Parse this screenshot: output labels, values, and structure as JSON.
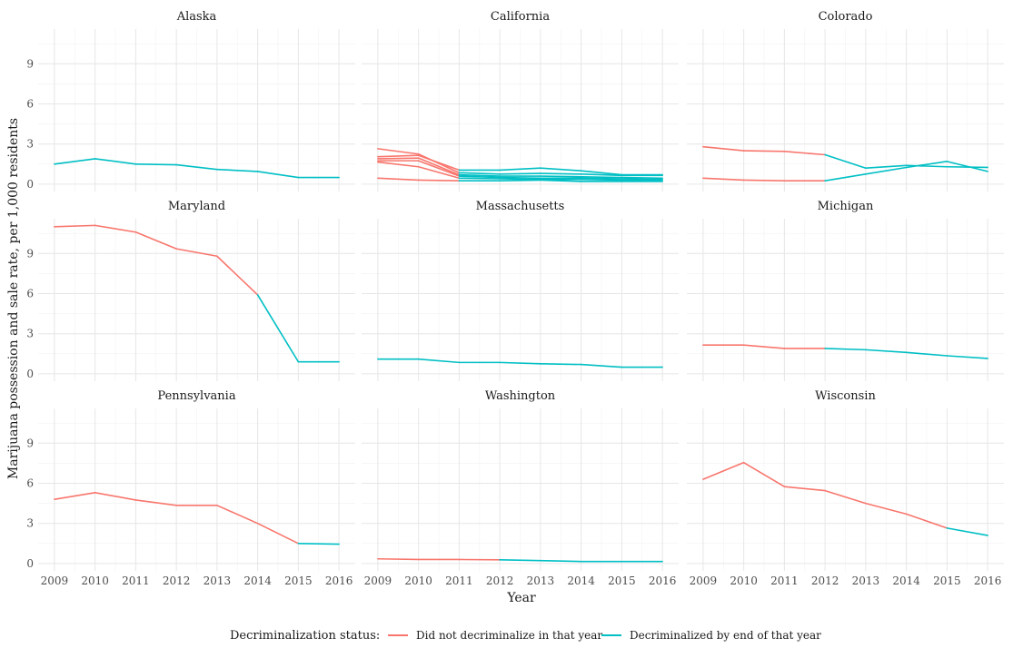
{
  "chart_data": {
    "type": "line",
    "facet": "small-multiples",
    "grid": true,
    "xlabel": "Year",
    "ylabel": "Marijuana possession and sale rate, per 1,000 residents",
    "x_ticks": [
      2009,
      2010,
      2011,
      2012,
      2013,
      2014,
      2015,
      2016
    ],
    "y_ticks": [
      0,
      3,
      6,
      9
    ],
    "xlim": [
      2008.6,
      2016.4
    ],
    "ylim": [
      -0.55,
      11.6
    ],
    "legend": {
      "title": "Decriminalization status:",
      "position": "bottom",
      "entries": [
        {
          "label": "Did not decriminalize in that year",
          "color": "#F8766D"
        },
        {
          "label": "Decriminalized by end of that year",
          "color": "#00BFC4"
        }
      ]
    },
    "colors": {
      "not_decriminalized": "#F8766D",
      "decriminalized": "#00BFC4"
    },
    "panels": [
      {
        "state": "Alaska",
        "lines": [
          {
            "points": [
              [
                2009,
                1.5
              ],
              [
                2010,
                1.9
              ],
              [
                2011,
                1.5
              ],
              [
                2012,
                1.45
              ],
              [
                2013,
                1.1
              ],
              [
                2014,
                0.95
              ],
              [
                2015,
                0.5
              ],
              [
                2016,
                0.5
              ]
            ],
            "decrim_from": 2009
          }
        ]
      },
      {
        "state": "California",
        "lines": [
          {
            "points": [
              [
                2009,
                2.65
              ],
              [
                2010,
                2.25
              ],
              [
                2011,
                0.85
              ],
              [
                2012,
                0.75
              ],
              [
                2013,
                0.8
              ],
              [
                2014,
                0.75
              ],
              [
                2015,
                0.65
              ],
              [
                2016,
                0.65
              ]
            ],
            "decrim_from": 2011
          },
          {
            "points": [
              [
                2009,
                2.05
              ],
              [
                2010,
                2.15
              ],
              [
                2011,
                1.05
              ],
              [
                2012,
                1.05
              ],
              [
                2013,
                1.2
              ],
              [
                2014,
                1.0
              ],
              [
                2015,
                0.7
              ],
              [
                2016,
                0.7
              ]
            ],
            "decrim_from": 2011
          },
          {
            "points": [
              [
                2009,
                1.9
              ],
              [
                2010,
                1.95
              ],
              [
                2011,
                0.7
              ],
              [
                2012,
                0.6
              ],
              [
                2013,
                0.6
              ],
              [
                2014,
                0.55
              ],
              [
                2015,
                0.5
              ],
              [
                2016,
                0.45
              ]
            ],
            "decrim_from": 2011
          },
          {
            "points": [
              [
                2009,
                1.75
              ],
              [
                2010,
                1.75
              ],
              [
                2011,
                0.6
              ],
              [
                2012,
                0.5
              ],
              [
                2013,
                0.45
              ],
              [
                2014,
                0.45
              ],
              [
                2015,
                0.4
              ],
              [
                2016,
                0.35
              ]
            ],
            "decrim_from": 2011
          },
          {
            "points": [
              [
                2009,
                1.65
              ],
              [
                2010,
                1.3
              ],
              [
                2011,
                0.45
              ],
              [
                2012,
                0.4
              ],
              [
                2013,
                0.35
              ],
              [
                2014,
                0.35
              ],
              [
                2015,
                0.3
              ],
              [
                2016,
                0.3
              ]
            ],
            "decrim_from": 2011
          },
          {
            "points": [
              [
                2009,
                0.45
              ],
              [
                2010,
                0.3
              ],
              [
                2011,
                0.25
              ],
              [
                2012,
                0.25
              ],
              [
                2013,
                0.3
              ],
              [
                2014,
                0.2
              ],
              [
                2015,
                0.2
              ],
              [
                2016,
                0.2
              ]
            ],
            "decrim_from": 2011
          }
        ]
      },
      {
        "state": "Colorado",
        "lines": [
          {
            "points": [
              [
                2009,
                2.8
              ],
              [
                2010,
                2.5
              ],
              [
                2011,
                2.45
              ],
              [
                2012,
                2.2
              ],
              [
                2013,
                1.2
              ],
              [
                2014,
                1.4
              ],
              [
                2015,
                1.3
              ],
              [
                2016,
                1.25
              ]
            ],
            "decrim_from": 2012
          },
          {
            "points": [
              [
                2009,
                0.45
              ],
              [
                2010,
                0.3
              ],
              [
                2011,
                0.25
              ],
              [
                2012,
                0.25
              ],
              [
                2013,
                0.75
              ],
              [
                2014,
                1.25
              ],
              [
                2015,
                1.7
              ],
              [
                2016,
                0.95
              ]
            ],
            "decrim_from": 2012
          }
        ]
      },
      {
        "state": "Maryland",
        "lines": [
          {
            "points": [
              [
                2009,
                11.0
              ],
              [
                2010,
                11.1
              ],
              [
                2011,
                10.6
              ],
              [
                2012,
                9.35
              ],
              [
                2013,
                8.8
              ],
              [
                2014,
                5.9
              ],
              [
                2015,
                0.9
              ],
              [
                2016,
                0.9
              ]
            ],
            "decrim_from": 2014
          }
        ]
      },
      {
        "state": "Massachusetts",
        "lines": [
          {
            "points": [
              [
                2009,
                1.1
              ],
              [
                2010,
                1.1
              ],
              [
                2011,
                0.85
              ],
              [
                2012,
                0.85
              ],
              [
                2013,
                0.75
              ],
              [
                2014,
                0.7
              ],
              [
                2015,
                0.5
              ],
              [
                2016,
                0.5
              ]
            ],
            "decrim_from": 2009
          }
        ]
      },
      {
        "state": "Michigan",
        "lines": [
          {
            "points": [
              [
                2009,
                2.15
              ],
              [
                2010,
                2.15
              ],
              [
                2011,
                1.9
              ],
              [
                2012,
                1.9
              ],
              [
                2013,
                1.8
              ],
              [
                2014,
                1.6
              ],
              [
                2015,
                1.35
              ],
              [
                2016,
                1.15
              ]
            ],
            "decrim_from": 2012
          }
        ]
      },
      {
        "state": "Pennsylvania",
        "lines": [
          {
            "points": [
              [
                2009,
                4.8
              ],
              [
                2010,
                5.3
              ],
              [
                2011,
                4.75
              ],
              [
                2012,
                4.35
              ],
              [
                2013,
                4.35
              ],
              [
                2014,
                3.0
              ],
              [
                2015,
                1.5
              ],
              [
                2016,
                1.45
              ]
            ],
            "decrim_from": 2015
          }
        ]
      },
      {
        "state": "Washington",
        "lines": [
          {
            "points": [
              [
                2009,
                0.35
              ],
              [
                2010,
                0.3
              ],
              [
                2011,
                0.3
              ],
              [
                2012,
                0.28
              ],
              [
                2013,
                0.22
              ],
              [
                2014,
                0.15
              ],
              [
                2015,
                0.15
              ],
              [
                2016,
                0.15
              ]
            ],
            "decrim_from": 2012
          }
        ]
      },
      {
        "state": "Wisconsin",
        "lines": [
          {
            "points": [
              [
                2009,
                6.3
              ],
              [
                2010,
                7.55
              ],
              [
                2011,
                5.75
              ],
              [
                2012,
                5.45
              ],
              [
                2013,
                4.5
              ],
              [
                2014,
                3.7
              ],
              [
                2015,
                2.65
              ],
              [
                2016,
                2.1
              ]
            ],
            "decrim_from": 2015
          }
        ]
      }
    ]
  }
}
